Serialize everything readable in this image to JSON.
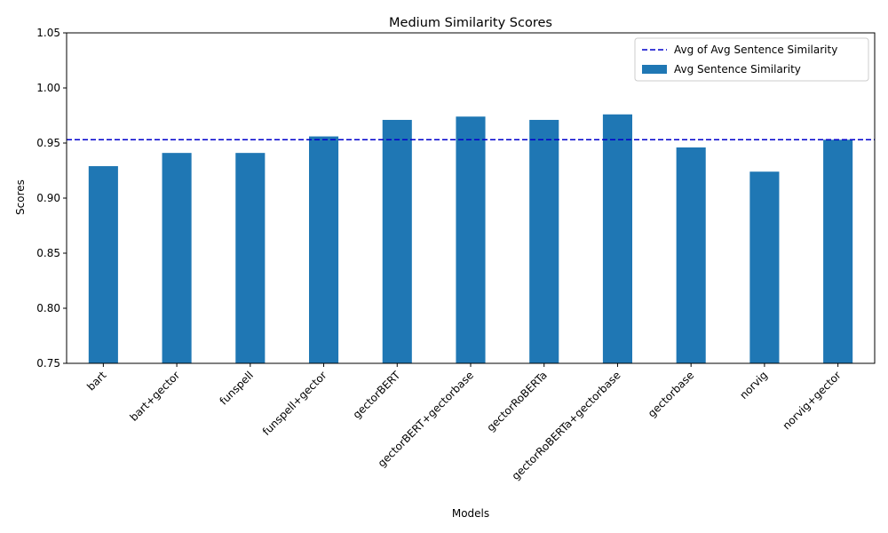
{
  "chart_data": {
    "type": "bar",
    "title": "Medium Similarity Scores",
    "xlabel": "Models",
    "ylabel": "Scores",
    "ylim": [
      0.75,
      1.05
    ],
    "yticks": [
      "0.75",
      "0.80",
      "0.85",
      "0.90",
      "0.95",
      "1.00",
      "1.05"
    ],
    "categories": [
      "bart",
      "bart+gector",
      "funspell",
      "funspell+gector",
      "gectorBERT",
      "gectorBERT+gectorbase",
      "gectorRoBERTa",
      "gectorRoBERTa+gectorbase",
      "gectorbase",
      "norvig",
      "norvig+gector"
    ],
    "series": [
      {
        "name": "Avg Sentence Similarity",
        "color": "#1f77b4",
        "values": [
          0.929,
          0.941,
          0.941,
          0.956,
          0.971,
          0.974,
          0.971,
          0.976,
          0.946,
          0.924,
          0.953
        ]
      }
    ],
    "reference_line": {
      "name": "Avg of Avg Sentence Similarity",
      "value": 0.953,
      "color": "#0000cc",
      "style": "dashed"
    },
    "legend": [
      "Avg of Avg Sentence Similarity",
      "Avg Sentence Similarity"
    ],
    "legend_position": "top-right",
    "grid": false
  }
}
